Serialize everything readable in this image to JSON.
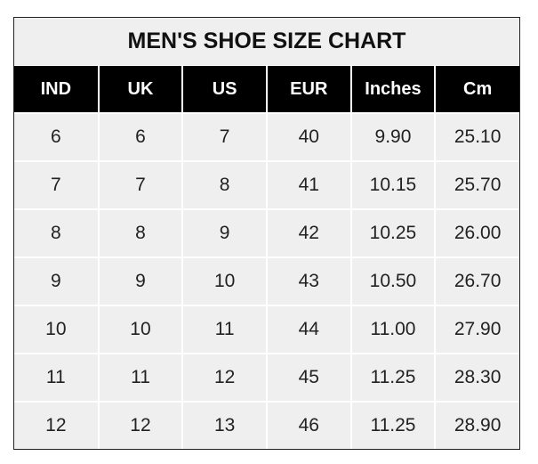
{
  "title": "MEN'S SHOE SIZE CHART",
  "headers": [
    "IND",
    "UK",
    "US",
    "EUR",
    "Inches",
    "Cm"
  ],
  "rows": [
    [
      "6",
      "6",
      "7",
      "40",
      "9.90",
      "25.10"
    ],
    [
      "7",
      "7",
      "8",
      "41",
      "10.15",
      "25.70"
    ],
    [
      "8",
      "8",
      "9",
      "42",
      "10.25",
      "26.00"
    ],
    [
      "9",
      "9",
      "10",
      "43",
      "10.50",
      "26.70"
    ],
    [
      "10",
      "10",
      "11",
      "44",
      "11.00",
      "27.90"
    ],
    [
      "11",
      "11",
      "12",
      "45",
      "11.25",
      "28.30"
    ],
    [
      "12",
      "12",
      "13",
      "46",
      "11.25",
      "28.90"
    ]
  ],
  "colors": {
    "header_bg": "#000000",
    "header_text": "#ffffff",
    "cell_bg": "#efefef"
  }
}
